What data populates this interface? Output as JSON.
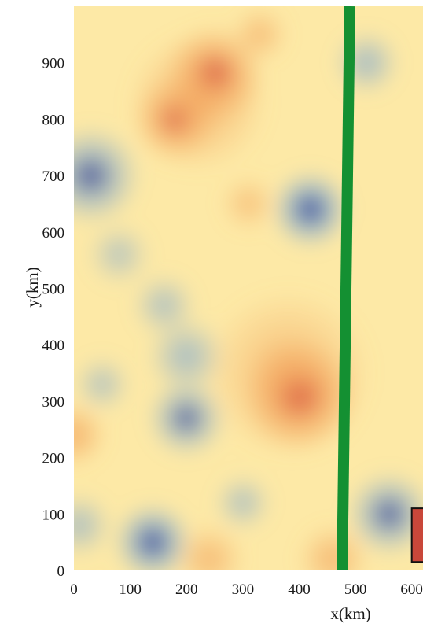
{
  "chart_data": {
    "type": "heatmap",
    "title": "",
    "xlabel": "x(km)",
    "ylabel": "y(km)",
    "xlim": [
      0,
      620
    ],
    "ylim": [
      0,
      1000
    ],
    "x_ticks": [
      "0",
      "100",
      "200",
      "300",
      "400",
      "500",
      "600"
    ],
    "y_ticks": [
      "0",
      "100",
      "200",
      "300",
      "400",
      "500",
      "600",
      "700",
      "800",
      "900"
    ],
    "x_tick_values": [
      0,
      100,
      200,
      300,
      400,
      500,
      600
    ],
    "y_tick_values": [
      0,
      100,
      200,
      300,
      400,
      500,
      600,
      700,
      800,
      900
    ],
    "grid": false,
    "colormap": "diverging blue-yellow-red (RdYlBu reversed)",
    "colors": {
      "neutral": "#fde9a6",
      "warm_mid": "#f3a55e",
      "warm_strong": "#c6242a",
      "cool_mid": "#7fa8d1",
      "cool_strong": "#25318e"
    },
    "anomalies": [
      {
        "x": 250,
        "y": 880,
        "r": 70,
        "intensity": 0.85
      },
      {
        "x": 180,
        "y": 800,
        "r": 60,
        "intensity": 0.7
      },
      {
        "x": 220,
        "y": 830,
        "r": 100,
        "intensity": 0.4
      },
      {
        "x": 400,
        "y": 310,
        "r": 80,
        "intensity": 1.0
      },
      {
        "x": 380,
        "y": 350,
        "r": 120,
        "intensity": 0.35
      },
      {
        "x": 330,
        "y": 950,
        "r": 40,
        "intensity": 0.35
      },
      {
        "x": 0,
        "y": 240,
        "r": 45,
        "intensity": 0.6
      },
      {
        "x": 240,
        "y": 20,
        "r": 50,
        "intensity": 0.4
      },
      {
        "x": 460,
        "y": 20,
        "r": 50,
        "intensity": 0.45
      },
      {
        "x": 310,
        "y": 650,
        "r": 40,
        "intensity": 0.25
      },
      {
        "x": 420,
        "y": 640,
        "r": 55,
        "intensity": -1.0
      },
      {
        "x": 140,
        "y": 50,
        "r": 55,
        "intensity": -0.95
      },
      {
        "x": 30,
        "y": 700,
        "r": 70,
        "intensity": -0.75
      },
      {
        "x": 200,
        "y": 270,
        "r": 55,
        "intensity": -0.7
      },
      {
        "x": 200,
        "y": 380,
        "r": 55,
        "intensity": -0.4
      },
      {
        "x": 160,
        "y": 470,
        "r": 45,
        "intensity": -0.3
      },
      {
        "x": 520,
        "y": 900,
        "r": 45,
        "intensity": -0.45
      },
      {
        "x": 10,
        "y": 80,
        "r": 45,
        "intensity": -0.35
      },
      {
        "x": 560,
        "y": 100,
        "r": 60,
        "intensity": -0.75
      },
      {
        "x": 50,
        "y": 330,
        "r": 40,
        "intensity": -0.25
      },
      {
        "x": 300,
        "y": 120,
        "r": 40,
        "intensity": -0.3
      },
      {
        "x": 80,
        "y": 560,
        "r": 45,
        "intensity": -0.2
      }
    ],
    "overlays": [
      {
        "type": "line",
        "color": "#149032",
        "x_start": 490,
        "y_start": 1000,
        "x_end": 475,
        "y_end": -100
      },
      {
        "type": "rectangle",
        "color": "#c9473a",
        "edge": "#111111",
        "x0": 600,
        "x1": 620,
        "y0": 15,
        "y1": 110
      }
    ]
  }
}
